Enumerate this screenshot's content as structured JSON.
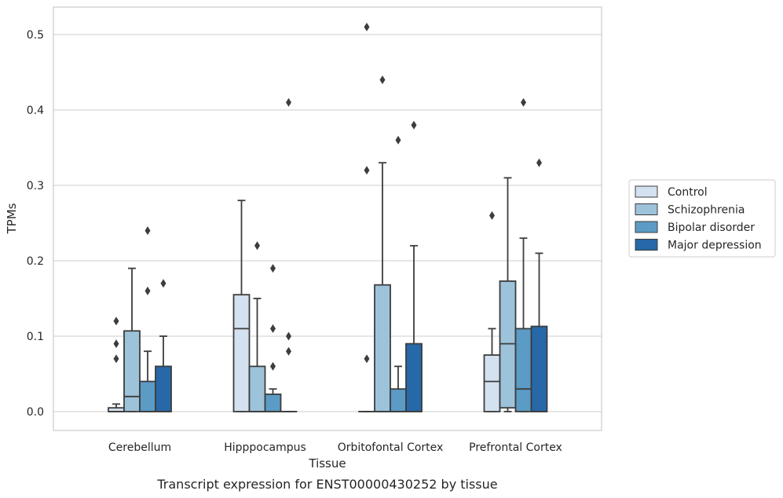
{
  "caption": "Transcript expression for ENST00000430252 by tissue",
  "chart_data": {
    "type": "box",
    "xlabel": "Tissue",
    "ylabel": "TPMs",
    "ylim": [
      -0.025,
      0.535
    ],
    "yticks": [
      "0.0",
      "0.1",
      "0.2",
      "0.3",
      "0.4",
      "0.5"
    ],
    "ytick_values": [
      0,
      0.1,
      0.2,
      0.3,
      0.4,
      0.5
    ],
    "grid": "horizontal",
    "legend_position": "right",
    "categories": [
      "Cerebellum",
      "Hipppocampus",
      "Orbitofontal Cortex",
      "Prefrontal Cortex"
    ],
    "series": [
      {
        "name": "Control",
        "color": "#d3e1f0",
        "boxes": [
          {
            "category": "Cerebellum",
            "whisker_low": 0,
            "q1": 0,
            "median": 0,
            "q3": 0.005,
            "whisker_high": 0.01,
            "outliers": [
              0.07,
              0.09,
              0.12
            ]
          },
          {
            "category": "Hipppocampus",
            "whisker_low": 0,
            "q1": 0,
            "median": 0.11,
            "q3": 0.155,
            "whisker_high": 0.28,
            "outliers": []
          },
          {
            "category": "Orbitofontal Cortex",
            "whisker_low": 0,
            "q1": 0,
            "median": 0,
            "q3": 0,
            "whisker_high": 0,
            "outliers": [
              0.07,
              0.32,
              0.51
            ]
          },
          {
            "category": "Prefrontal Cortex",
            "whisker_low": 0,
            "q1": 0,
            "median": 0.04,
            "q3": 0.075,
            "whisker_high": 0.11,
            "outliers": [
              0.26
            ]
          }
        ]
      },
      {
        "name": "Schizophrenia",
        "color": "#9dc3db",
        "boxes": [
          {
            "category": "Cerebellum",
            "whisker_low": 0,
            "q1": 0,
            "median": 0.02,
            "q3": 0.107,
            "whisker_high": 0.19,
            "outliers": []
          },
          {
            "category": "Hipppocampus",
            "whisker_low": 0,
            "q1": 0,
            "median": 0,
            "q3": 0.06,
            "whisker_high": 0.15,
            "outliers": [
              0.22
            ]
          },
          {
            "category": "Orbitofontal Cortex",
            "whisker_low": 0,
            "q1": 0,
            "median": 0,
            "q3": 0.168,
            "whisker_high": 0.33,
            "outliers": [
              0.44
            ]
          },
          {
            "category": "Prefrontal Cortex",
            "whisker_low": 0,
            "q1": 0.005,
            "median": 0.09,
            "q3": 0.173,
            "whisker_high": 0.31,
            "outliers": []
          }
        ]
      },
      {
        "name": "Bipolar disorder",
        "color": "#5b9bc5",
        "boxes": [
          {
            "category": "Cerebellum",
            "whisker_low": 0,
            "q1": 0,
            "median": 0,
            "q3": 0.04,
            "whisker_high": 0.08,
            "outliers": [
              0.16,
              0.24
            ]
          },
          {
            "category": "Hipppocampus",
            "whisker_low": 0,
            "q1": 0,
            "median": 0,
            "q3": 0.023,
            "whisker_high": 0.03,
            "outliers": [
              0.06,
              0.11,
              0.19
            ]
          },
          {
            "category": "Orbitofontal Cortex",
            "whisker_low": 0,
            "q1": 0,
            "median": 0,
            "q3": 0.03,
            "whisker_high": 0.06,
            "outliers": [
              0.36
            ]
          },
          {
            "category": "Prefrontal Cortex",
            "whisker_low": 0,
            "q1": 0,
            "median": 0.03,
            "q3": 0.11,
            "whisker_high": 0.23,
            "outliers": [
              0.41
            ]
          }
        ]
      },
      {
        "name": "Major depression",
        "color": "#2668a8",
        "boxes": [
          {
            "category": "Cerebellum",
            "whisker_low": 0,
            "q1": 0,
            "median": 0,
            "q3": 0.06,
            "whisker_high": 0.1,
            "outliers": [
              0.17
            ]
          },
          {
            "category": "Hipppocampus",
            "whisker_low": 0,
            "q1": 0,
            "median": 0,
            "q3": 0,
            "whisker_high": 0,
            "outliers": [
              0.08,
              0.1,
              0.41
            ]
          },
          {
            "category": "Orbitofontal Cortex",
            "whisker_low": 0,
            "q1": 0,
            "median": 0,
            "q3": 0.09,
            "whisker_high": 0.22,
            "outliers": [
              0.38
            ]
          },
          {
            "category": "Prefrontal Cortex",
            "whisker_low": 0,
            "q1": 0,
            "median": 0,
            "q3": 0.113,
            "whisker_high": 0.21,
            "outliers": [
              0.33
            ]
          }
        ]
      }
    ]
  }
}
